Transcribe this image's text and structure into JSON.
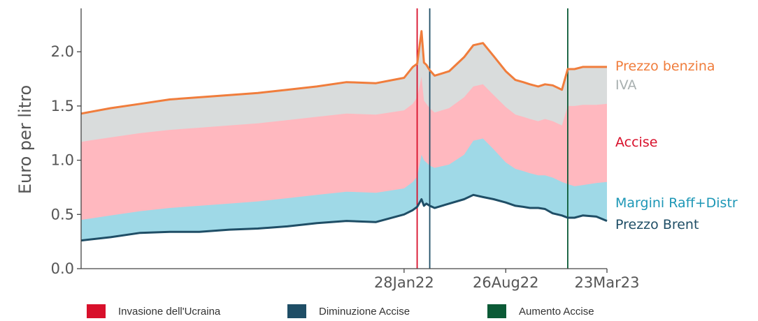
{
  "chart_data": {
    "type": "area",
    "ylabel": "Euro per litro",
    "xlabel": "",
    "ylim": [
      0,
      2.4
    ],
    "yticks": [
      "0.0",
      "0.5",
      "1.0",
      "1.5",
      "2.0"
    ],
    "xticks": [
      {
        "label": "28Jan22",
        "x": "2022-01-28"
      },
      {
        "label": "26Aug22",
        "x": "2022-08-26"
      },
      {
        "label": "23Mar23",
        "x": "2023-03-23"
      }
    ],
    "x_range": [
      "2020-04-01",
      "2023-03-23"
    ],
    "grid": false,
    "dates": [
      "2020-04-01",
      "2020-06-01",
      "2020-08-01",
      "2020-10-01",
      "2020-12-01",
      "2021-02-01",
      "2021-04-01",
      "2021-06-01",
      "2021-08-01",
      "2021-10-01",
      "2021-12-01",
      "2022-01-28",
      "2022-02-15",
      "2022-02-24",
      "2022-03-05",
      "2022-03-10",
      "2022-03-15",
      "2022-03-22",
      "2022-04-01",
      "2022-05-01",
      "2022-06-01",
      "2022-06-20",
      "2022-07-10",
      "2022-08-01",
      "2022-08-26",
      "2022-09-15",
      "2022-10-01",
      "2022-10-15",
      "2022-11-01",
      "2022-11-15",
      "2022-12-01",
      "2022-12-20",
      "2023-01-01",
      "2023-01-15",
      "2023-02-01",
      "2023-03-01",
      "2023-03-23"
    ],
    "series": [
      {
        "name": "Prezzo Brent",
        "color": "#1f4e66",
        "values": [
          0.26,
          0.29,
          0.33,
          0.34,
          0.34,
          0.36,
          0.37,
          0.39,
          0.42,
          0.44,
          0.43,
          0.5,
          0.54,
          0.57,
          0.64,
          0.58,
          0.6,
          0.58,
          0.56,
          0.6,
          0.64,
          0.68,
          0.66,
          0.64,
          0.61,
          0.58,
          0.57,
          0.56,
          0.56,
          0.55,
          0.51,
          0.49,
          0.47,
          0.47,
          0.49,
          0.48,
          0.44
        ]
      },
      {
        "name": "Margini Raff+Distr",
        "color": "#9fd9e7",
        "values": [
          0.45,
          0.49,
          0.53,
          0.56,
          0.58,
          0.6,
          0.62,
          0.65,
          0.68,
          0.71,
          0.7,
          0.74,
          0.8,
          0.85,
          1.05,
          1.0,
          0.98,
          0.95,
          0.93,
          0.96,
          1.05,
          1.18,
          1.2,
          1.1,
          0.98,
          0.92,
          0.9,
          0.88,
          0.86,
          0.86,
          0.84,
          0.8,
          0.78,
          0.76,
          0.77,
          0.79,
          0.8
        ]
      },
      {
        "name": "Accise",
        "color": "#ffb8bf",
        "values": [
          1.17,
          1.21,
          1.25,
          1.28,
          1.3,
          1.32,
          1.34,
          1.37,
          1.4,
          1.43,
          1.42,
          1.46,
          1.52,
          1.58,
          1.77,
          1.55,
          1.52,
          1.48,
          1.44,
          1.48,
          1.58,
          1.68,
          1.7,
          1.6,
          1.49,
          1.42,
          1.4,
          1.38,
          1.36,
          1.38,
          1.36,
          1.32,
          1.5,
          1.5,
          1.51,
          1.51,
          1.52
        ]
      },
      {
        "name": "IVA",
        "color": "#d9dcdc",
        "values": [
          1.43,
          1.48,
          1.52,
          1.56,
          1.58,
          1.6,
          1.62,
          1.65,
          1.68,
          1.72,
          1.71,
          1.76,
          1.86,
          1.89,
          2.19,
          1.9,
          1.88,
          1.83,
          1.78,
          1.82,
          1.95,
          2.06,
          2.08,
          1.96,
          1.82,
          1.74,
          1.72,
          1.7,
          1.68,
          1.7,
          1.69,
          1.65,
          1.84,
          1.84,
          1.86,
          1.86,
          1.86
        ]
      },
      {
        "name": "Prezzo benzina",
        "color": "#f07d3c",
        "values": [
          1.43,
          1.48,
          1.52,
          1.56,
          1.58,
          1.6,
          1.62,
          1.65,
          1.68,
          1.72,
          1.71,
          1.76,
          1.86,
          1.89,
          2.19,
          1.9,
          1.88,
          1.83,
          1.78,
          1.82,
          1.95,
          2.06,
          2.08,
          1.96,
          1.82,
          1.74,
          1.72,
          1.7,
          1.68,
          1.7,
          1.69,
          1.65,
          1.84,
          1.84,
          1.86,
          1.86,
          1.86
        ]
      }
    ],
    "events": [
      {
        "name": "Invasione dell'Ucraina",
        "date": "2022-02-24",
        "color": "#d8102b"
      },
      {
        "name": "Diminuzione Accise",
        "date": "2022-03-22",
        "color": "#1f4e66"
      },
      {
        "name": "Aumento Accise",
        "date": "2023-01-01",
        "color": "#0b5a36"
      }
    ]
  },
  "labels": {
    "prezzo_benzina": {
      "text": "Prezzo benzina",
      "color": "#f07d3c"
    },
    "iva": {
      "text": "IVA",
      "color": "#a8b0b0"
    },
    "accise": {
      "text": "Accise",
      "color": "#d8102b"
    },
    "margini": {
      "text": "Margini Raff+Distr",
      "color": "#1d97b6"
    },
    "brent": {
      "text": "Prezzo Brent",
      "color": "#1f4e66"
    }
  },
  "legend": [
    {
      "label": "Invasione dell'Ucraina",
      "color": "#d8102b"
    },
    {
      "label": "Diminuzione Accise",
      "color": "#1f4e66"
    },
    {
      "label": "Aumento Accise",
      "color": "#0b5a36"
    }
  ]
}
